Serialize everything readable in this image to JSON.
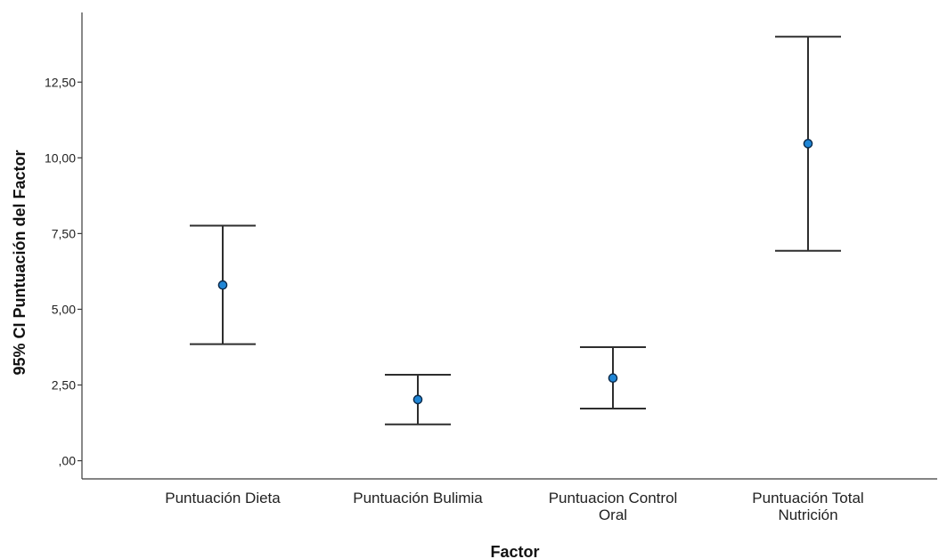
{
  "chart_data": {
    "type": "errorbar",
    "xlabel": "Factor",
    "ylabel": "95% CI Puntuación del Factor",
    "ylim": [
      -0.6,
      14.8
    ],
    "yticks": [
      {
        "value": 0,
        "label": ",00"
      },
      {
        "value": 2.5,
        "label": "2,50"
      },
      {
        "value": 5,
        "label": "5,00"
      },
      {
        "value": 7.5,
        "label": "7,50"
      },
      {
        "value": 10,
        "label": "10,00"
      },
      {
        "value": 12.5,
        "label": "12,50"
      }
    ],
    "categories": [
      [
        "Puntuación Dieta"
      ],
      [
        "Puntuación Bulimia"
      ],
      [
        "Puntuacion Control",
        "Oral"
      ],
      [
        "Puntuación Total",
        "Nutrición"
      ]
    ],
    "mean": [
      5.8,
      2.02,
      2.73,
      10.47
    ],
    "ci_lower": [
      3.85,
      1.2,
      1.72,
      6.93
    ],
    "ci_upper": [
      7.76,
      2.84,
      3.75,
      14.0
    ],
    "point_color": "#1f86d6",
    "grid": false,
    "legend": "none"
  }
}
